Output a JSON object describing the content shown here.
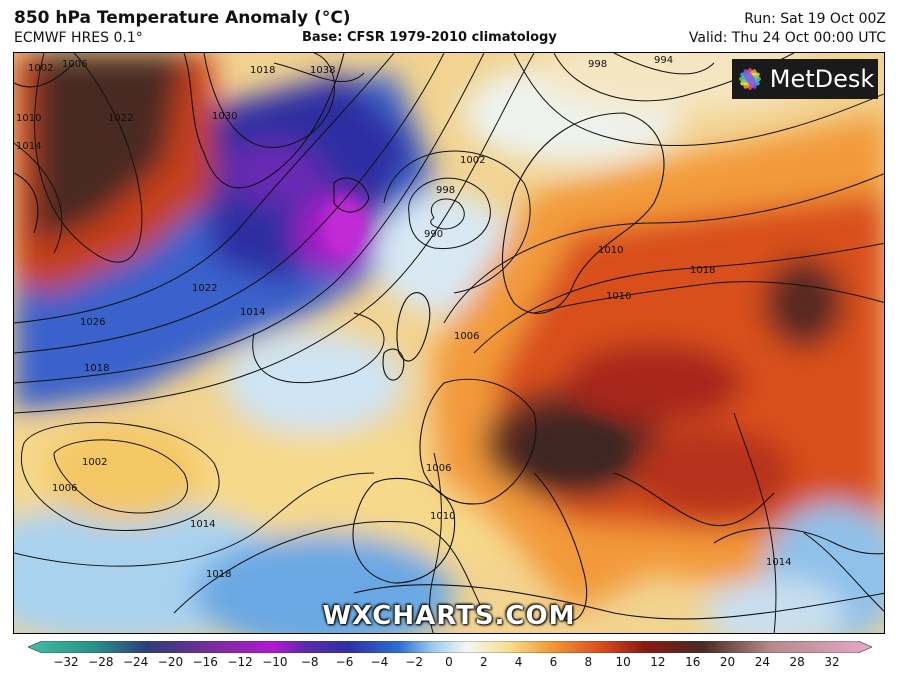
{
  "header": {
    "title": "850 hPa Temperature Anomaly (°C)",
    "model": "ECMWF HRES 0.1°",
    "base": "Base: CFSR 1979-2010 climatology",
    "run": "Run: Sat 19 Oct 00Z",
    "valid": "Valid: Thu 24 Oct 00:00 UTC"
  },
  "logo": {
    "text": "MetDesk",
    "icon": "flower-logo-icon"
  },
  "watermark": "WXCHARTS.COM",
  "colorbar": {
    "ticks": [
      "−32",
      "−28",
      "−24",
      "−20",
      "−16",
      "−12",
      "−10",
      "−8",
      "−6",
      "−4",
      "−2",
      "0",
      "2",
      "4",
      "6",
      "8",
      "10",
      "12",
      "16",
      "20",
      "24",
      "28",
      "32"
    ],
    "colors": {
      "teal": "#3fbfa0",
      "purple": "#7a2b9e",
      "magenta": "#b11ad0",
      "deep_blue": "#2f30a8",
      "blue": "#2f6ed3",
      "light_blue": "#9fcbee",
      "white": "#f5f7f5",
      "yellow": "#f6dd8f",
      "orange": "#f09a35",
      "red": "#d94a1e",
      "dark_red": "#8a1a10",
      "brown": "#4a2a24",
      "pink": "#e6a8c8"
    }
  },
  "isobar_labels": [
    "1002",
    "1006",
    "1010",
    "1014",
    "1018",
    "1022",
    "1026",
    "1030",
    "1038",
    "998",
    "994",
    "990",
    "1002",
    "1006",
    "1010",
    "1014",
    "1018",
    "1022",
    "1014",
    "1018",
    "1010",
    "1006",
    "1002",
    "1006",
    "1014",
    "1018",
    "1014",
    "1018"
  ]
}
